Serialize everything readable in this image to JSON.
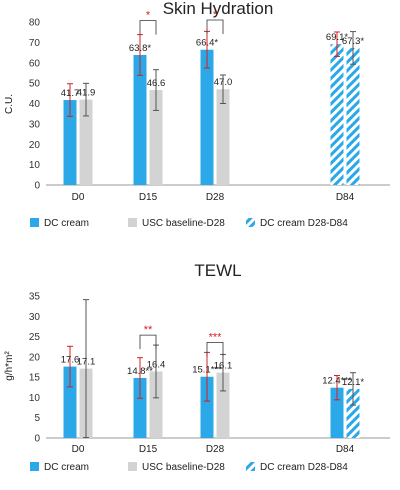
{
  "chart_data": [
    {
      "type": "bar",
      "title": "Skin Hydration",
      "xlabel": "",
      "ylabel": "C.U.",
      "ylim": [
        0,
        80
      ],
      "yticks": [
        0,
        10,
        20,
        30,
        40,
        50,
        60,
        70,
        80
      ],
      "grid": false,
      "legend_position": "bottom",
      "categories": [
        "D0",
        "D15",
        "D28",
        "D84"
      ],
      "series": [
        {
          "name": "DC cream",
          "color": "#2aa8e8",
          "pattern": "solid",
          "values": [
            41.7,
            63.8,
            66.4,
            null
          ],
          "errors": [
            8,
            10,
            9,
            null
          ],
          "error_color": "#d42020",
          "labels": [
            "41.7",
            "63.8*",
            "66.4*",
            null
          ]
        },
        {
          "name": "USC baseline-D28",
          "color": "#d3d3d3",
          "pattern": "solid",
          "values": [
            41.9,
            46.6,
            47.0,
            null
          ],
          "errors": [
            8,
            10,
            7,
            null
          ],
          "error_color": "#555555",
          "labels": [
            "41.9",
            "46.6",
            "47.0",
            null
          ]
        },
        {
          "name": "DC cream D28-D84",
          "color": "#2aa8e8",
          "pattern": "hatched",
          "values": [
            null,
            null,
            null,
            69.1
          ],
          "errors": [
            null,
            null,
            null,
            6
          ],
          "error_color": "#d42020",
          "labels": [
            null,
            null,
            null,
            "69.1*"
          ]
        },
        {
          "name": "",
          "color": "#2aa8e8",
          "pattern": "hatched",
          "values": [
            null,
            null,
            null,
            67.3
          ],
          "errors": [
            null,
            null,
            null,
            8
          ],
          "error_color": "#555555",
          "labels": [
            null,
            null,
            null,
            "67.3*"
          ]
        }
      ],
      "significance_brackets": [
        {
          "category": "D15",
          "text": "*"
        },
        {
          "category": "D28",
          "text": "*"
        }
      ]
    },
    {
      "type": "bar",
      "title": "TEWL",
      "xlabel": "",
      "ylabel": "g/h*m²",
      "ylim": [
        0,
        35
      ],
      "yticks": [
        0,
        5,
        10,
        15,
        20,
        25,
        30,
        35
      ],
      "grid": false,
      "legend_position": "bottom",
      "categories": [
        "D0",
        "D15",
        "D28",
        "D84"
      ],
      "series": [
        {
          "name": "DC cream",
          "color": "#2aa8e8",
          "pattern": "solid",
          "values": [
            17.6,
            14.8,
            15.1,
            12.4
          ],
          "errors": [
            5,
            5,
            6,
            3
          ],
          "error_color": "#d42020",
          "labels": [
            "17.6",
            "14.8**",
            "15.1***",
            "12.4***"
          ]
        },
        {
          "name": "USC baseline-D28",
          "color": "#d3d3d3",
          "pattern": "solid",
          "values": [
            17.1,
            16.4,
            16.1,
            null
          ],
          "errors": [
            17,
            6.5,
            4.5,
            null
          ],
          "error_color": "#555555",
          "labels": [
            "17.1",
            "16.4",
            "16.1",
            null
          ]
        },
        {
          "name": "DC cream D28-D84",
          "color": "#2aa8e8",
          "pattern": "hatched",
          "values": [
            null,
            null,
            null,
            12.1
          ],
          "errors": [
            null,
            null,
            null,
            4
          ],
          "error_color": "#555555",
          "labels": [
            null,
            null,
            null,
            "12.1*"
          ]
        }
      ],
      "significance_brackets": [
        {
          "category": "D15",
          "text": "**"
        },
        {
          "category": "D28",
          "text": "***"
        }
      ]
    }
  ]
}
